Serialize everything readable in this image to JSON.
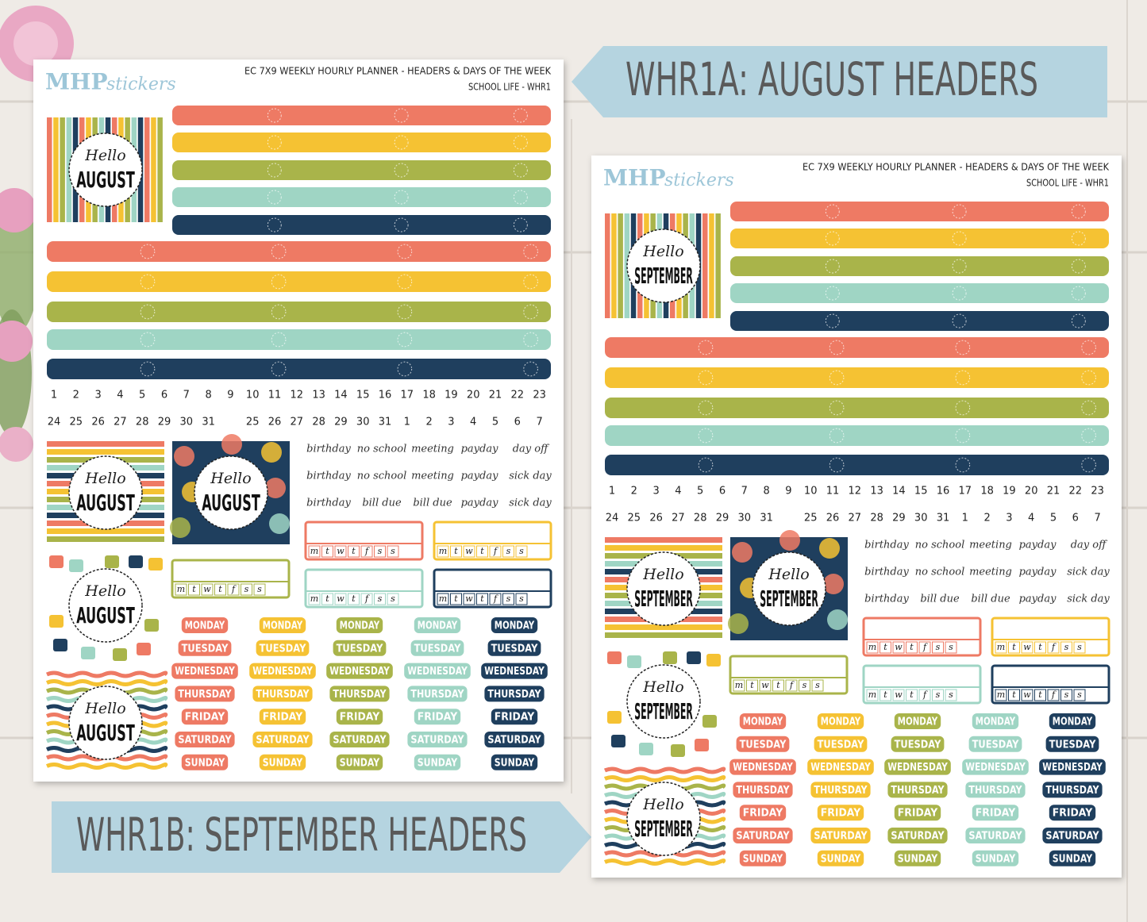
{
  "banners": [
    "WHR1A: AUGUST HEADERS",
    "WHR1B: SEPTEMBER HEADERS"
  ],
  "sheets": [
    {
      "logo": {
        "brand": "MHP",
        "suffix": "stickers"
      },
      "title": "EC 7X9 WEEKLY HOURLY PLANNER - HEADERS & DAYS OF THE WEEK",
      "subtitle": "SCHOOL LIFE - WHR1",
      "hello": "Hello",
      "month": "AUGUST",
      "numbers": [
        [
          1,
          2,
          3,
          4,
          5,
          6,
          7,
          8,
          9,
          10,
          11,
          12,
          13,
          14,
          15,
          16,
          17,
          18,
          19,
          20,
          21,
          22,
          23
        ],
        [
          24,
          25,
          26,
          27,
          28,
          29,
          30,
          31,
          25,
          26,
          27,
          28,
          29,
          30,
          31,
          1,
          2,
          3,
          4,
          5,
          6,
          7
        ]
      ],
      "words": [
        [
          "birthday",
          "no school",
          "meeting",
          "payday",
          "day off"
        ],
        [
          "birthday",
          "no school",
          "meeting",
          "payday",
          "sick day"
        ],
        [
          "birthday",
          "bill due",
          "bill due",
          "payday",
          "sick day"
        ]
      ],
      "week_letters": [
        "m",
        "t",
        "w",
        "t",
        "f",
        "s",
        "s"
      ],
      "days": [
        "MONDAY",
        "TUESDAY",
        "WEDNESDAY",
        "THURSDAY",
        "FRIDAY",
        "SATURDAY",
        "SUNDAY"
      ]
    },
    {
      "logo": {
        "brand": "MHP",
        "suffix": "stickers"
      },
      "title": "EC 7X9 WEEKLY HOURLY PLANNER - HEADERS & DAYS OF THE WEEK",
      "subtitle": "SCHOOL LIFE - WHR1",
      "hello": "Hello",
      "month": "SEPTEMBER",
      "numbers": [
        [
          1,
          2,
          3,
          4,
          5,
          6,
          7,
          8,
          9,
          10,
          11,
          12,
          13,
          14,
          15,
          16,
          17,
          18,
          19,
          20,
          21,
          22,
          23
        ],
        [
          24,
          25,
          26,
          27,
          28,
          29,
          30,
          31,
          25,
          26,
          27,
          28,
          29,
          30,
          31,
          1,
          2,
          3,
          4,
          5,
          6,
          7
        ]
      ],
      "words": [
        [
          "birthday",
          "no school",
          "meeting",
          "payday",
          "day off"
        ],
        [
          "birthday",
          "no school",
          "meeting",
          "payday",
          "sick day"
        ],
        [
          "birthday",
          "bill due",
          "bill due",
          "payday",
          "sick day"
        ]
      ],
      "week_letters": [
        "m",
        "t",
        "w",
        "t",
        "f",
        "s",
        "s"
      ],
      "days": [
        "MONDAY",
        "TUESDAY",
        "WEDNESDAY",
        "THURSDAY",
        "FRIDAY",
        "SATURDAY",
        "SUNDAY"
      ]
    }
  ]
}
